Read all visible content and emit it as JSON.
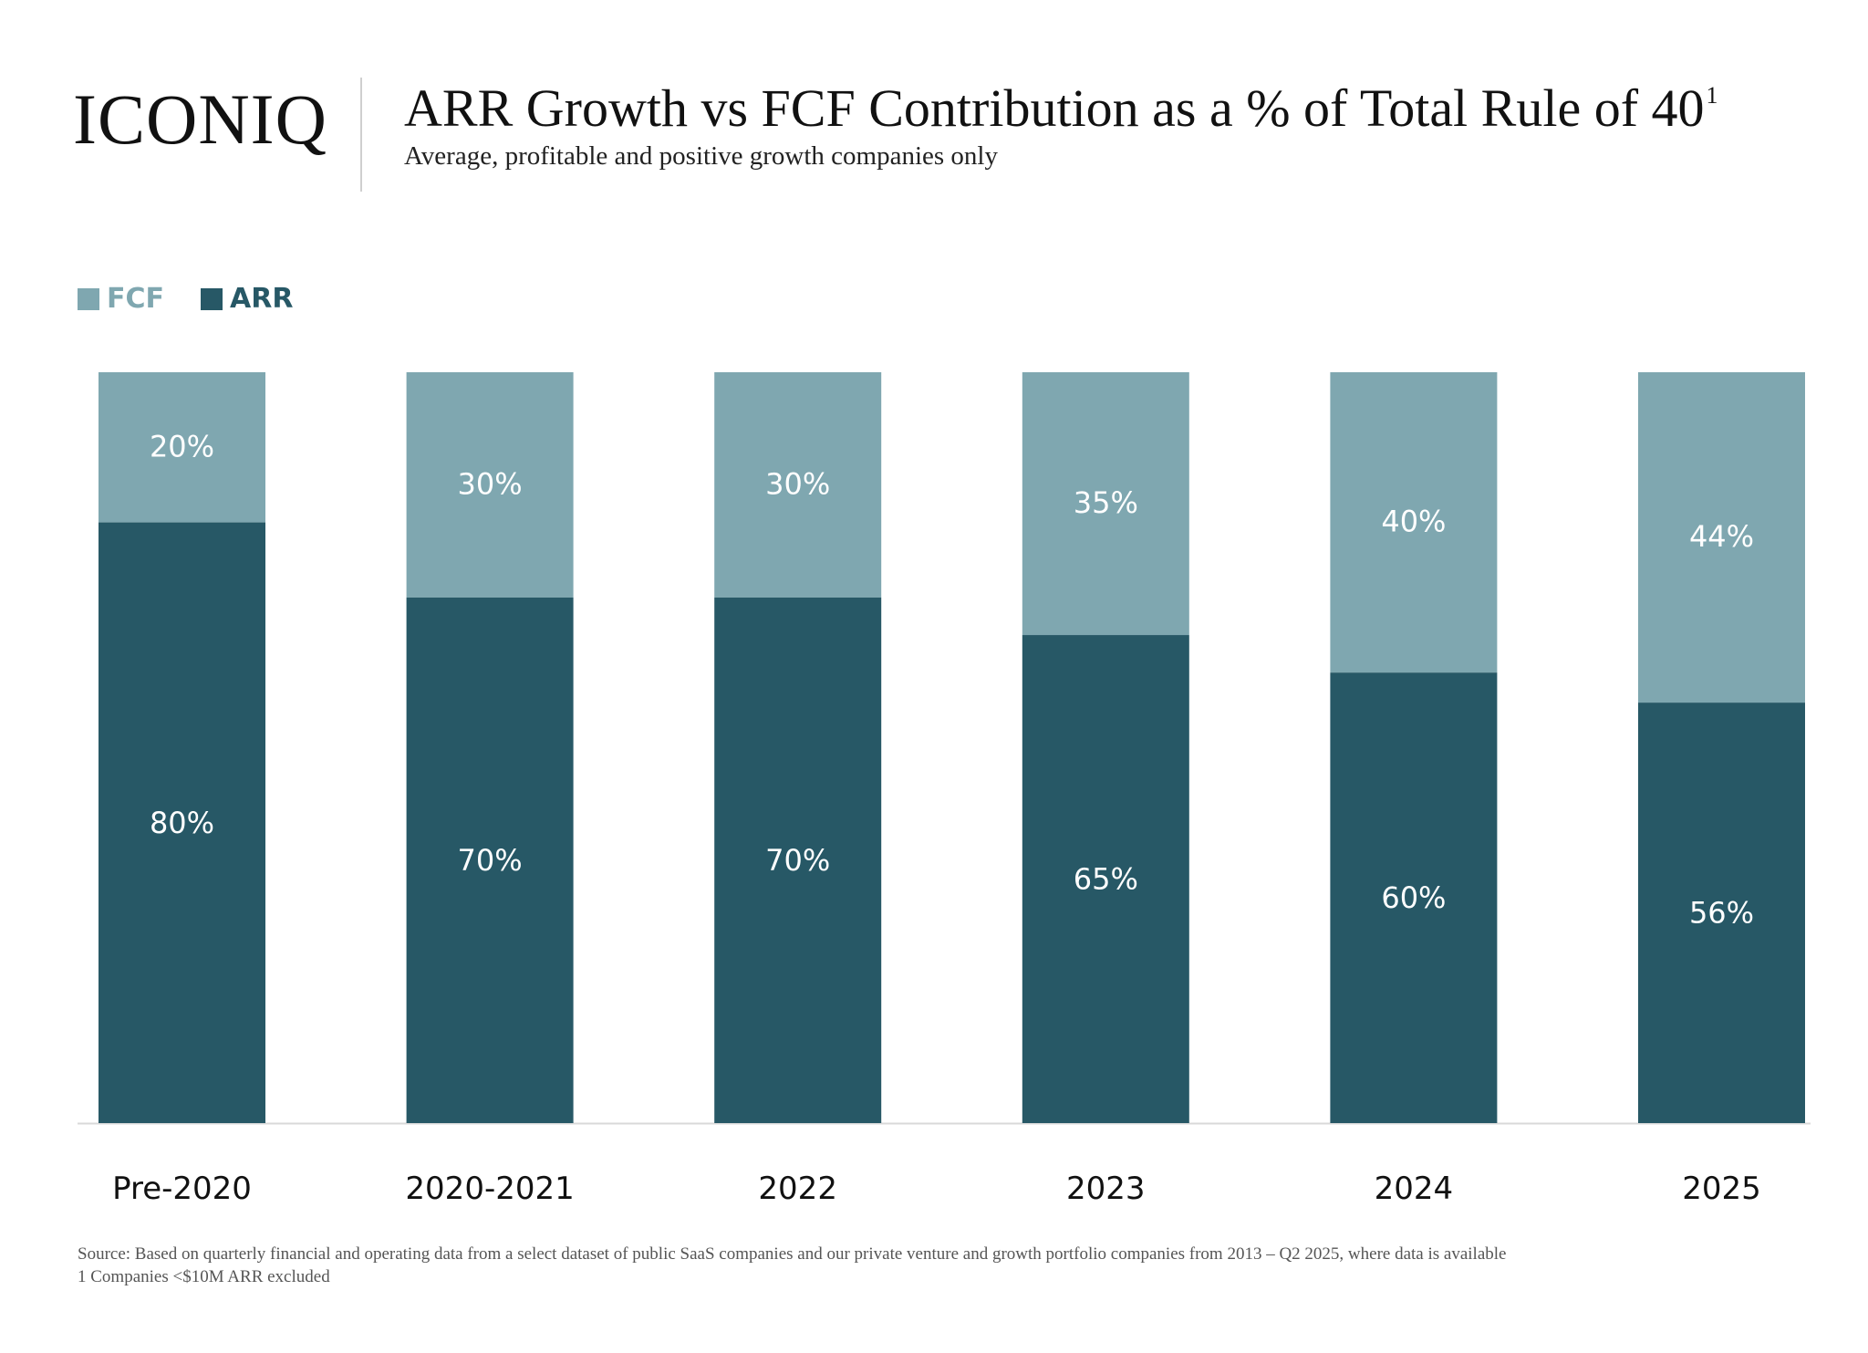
{
  "header": {
    "logo": "ICONIQ",
    "title": "ARR Growth vs FCF Contribution as a % of Total Rule of 40",
    "title_superscript": "1",
    "subtitle": "Average, profitable and positive growth companies only"
  },
  "colors": {
    "fcf": "#7fa7b0",
    "arr": "#275866",
    "label_on_bar": "#ffffff",
    "axis_tick": "#111111"
  },
  "chart_data": {
    "type": "bar",
    "stacked": true,
    "categories": [
      "Pre-2020",
      "2020-2021",
      "2022",
      "2023",
      "2024",
      "2025"
    ],
    "series": [
      {
        "name": "ARR",
        "values": [
          80,
          70,
          70,
          65,
          60,
          56
        ],
        "labels": [
          "80%",
          "70%",
          "70%",
          "65%",
          "60%",
          "56%"
        ]
      },
      {
        "name": "FCF",
        "values": [
          20,
          30,
          30,
          35,
          40,
          44
        ],
        "labels": [
          "20%",
          "30%",
          "30%",
          "35%",
          "40%",
          "44%"
        ]
      }
    ],
    "ylim": [
      0,
      100
    ],
    "grid": false,
    "legend_position": "top-left",
    "legend": [
      "FCF",
      "ARR"
    ]
  },
  "footer": {
    "source": "Source: Based on quarterly financial and operating data from a select dataset of public SaaS companies and our private venture and growth portfolio companies from 2013 – Q2 2025, where data is available",
    "note": "1 Companies <$10M ARR excluded"
  }
}
